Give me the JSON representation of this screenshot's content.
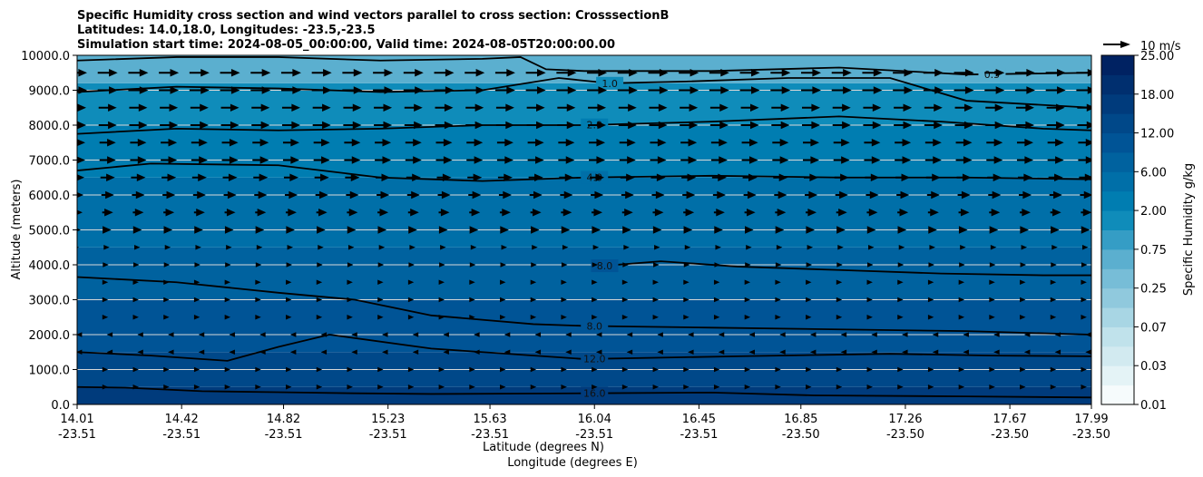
{
  "chart_data": {
    "type": "heatmap",
    "title_lines": [
      "Specific Humidity cross section and wind vectors parallel to cross section: CrosssectionB",
      "Latitudes: 14.0,18.0, Longitudes: -23.5,-23.5",
      "Simulation start time: 2024-08-05_00:00:00, Valid time: 2024-08-05T20:00:00.00"
    ],
    "ylabel": "Altitude (meters)",
    "xlabel_lines": [
      "Latitude (degrees N)",
      "Longitude (degrees E)"
    ],
    "ylim": [
      0,
      10000
    ],
    "y_ticks": [
      "0.0",
      "1000.0",
      "2000.0",
      "3000.0",
      "4000.0",
      "5000.0",
      "6000.0",
      "7000.0",
      "8000.0",
      "9000.0",
      "10000.0"
    ],
    "y_tick_values": [
      0,
      1000,
      2000,
      3000,
      4000,
      5000,
      6000,
      7000,
      8000,
      9000,
      10000
    ],
    "x_ticks": [
      {
        "lat": "14.01",
        "lon": "-23.51"
      },
      {
        "lat": "14.42",
        "lon": "-23.51"
      },
      {
        "lat": "14.82",
        "lon": "-23.51"
      },
      {
        "lat": "15.23",
        "lon": "-23.51"
      },
      {
        "lat": "15.63",
        "lon": "-23.51"
      },
      {
        "lat": "16.04",
        "lon": "-23.51"
      },
      {
        "lat": "16.45",
        "lon": "-23.51"
      },
      {
        "lat": "16.85",
        "lon": "-23.50"
      },
      {
        "lat": "17.26",
        "lon": "-23.50"
      },
      {
        "lat": "17.67",
        "lon": "-23.50"
      },
      {
        "lat": "17.99",
        "lon": "-23.50"
      }
    ],
    "grid": "horizontal",
    "colorbar": {
      "label": "Specific Humidity g/kg",
      "levels": [
        0.01,
        0.02,
        0.03,
        0.05,
        0.07,
        0.1,
        0.25,
        0.5,
        0.75,
        1.0,
        2.0,
        4.0,
        6.0,
        8.0,
        12.0,
        16.0,
        18.0,
        20.0,
        25.0
      ],
      "tick_labels": [
        "0.01",
        "0.03",
        "0.07",
        "0.25",
        "0.75",
        "2.00",
        "6.00",
        "12.00",
        "18.00",
        "25.00"
      ],
      "tick_levels": [
        0.01,
        0.03,
        0.07,
        0.25,
        0.75,
        2.0,
        6.0,
        12.0,
        18.0,
        25.0
      ]
    },
    "humidity_bands": [
      {
        "from": 0,
        "to": 500,
        "q": 16.0
      },
      {
        "from": 500,
        "to": 1500,
        "q": 12.0
      },
      {
        "from": 1500,
        "to": 3000,
        "q": 8.0
      },
      {
        "from": 3000,
        "to": 4500,
        "q": 6.0
      },
      {
        "from": 4500,
        "to": 6500,
        "q": 4.0
      },
      {
        "from": 6500,
        "to": 8000,
        "q": 2.0
      },
      {
        "from": 8000,
        "to": 9200,
        "q": 1.0
      },
      {
        "from": 9200,
        "to": 10000,
        "q": 0.5
      }
    ],
    "contours": [
      {
        "level": "16.0",
        "lat": [
          14.01,
          14.2,
          14.5,
          14.8,
          15.1,
          15.4,
          16.0,
          16.5,
          16.9,
          17.5,
          17.99
        ],
        "alt": [
          500,
          480,
          380,
          350,
          320,
          300,
          320,
          340,
          260,
          230,
          200
        ],
        "label_at": 16.04
      },
      {
        "level": "12.0",
        "lat": [
          14.01,
          14.3,
          14.6,
          14.8,
          15.0,
          15.4,
          16.0,
          16.6,
          17.2,
          17.6,
          17.99
        ],
        "alt": [
          1500,
          1400,
          1250,
          1650,
          2000,
          1600,
          1300,
          1380,
          1450,
          1400,
          1380
        ],
        "label_at": 16.04
      },
      {
        "level": "8.0",
        "lat": [
          14.01,
          14.4,
          14.8,
          15.1,
          15.4,
          15.8,
          16.0,
          16.5,
          17.0,
          17.5,
          17.99
        ],
        "alt": [
          3650,
          3500,
          3200,
          3000,
          2550,
          2300,
          2250,
          2200,
          2150,
          2100,
          2000
        ],
        "label_at": 16.04
      },
      {
        "level": "8.0",
        "lat": [
          16.04,
          16.3,
          16.6,
          17.0,
          17.4,
          17.8,
          17.99
        ],
        "alt": [
          3950,
          4100,
          3950,
          3850,
          3750,
          3700,
          3700
        ],
        "label_at": 16.08
      },
      {
        "level": "4.0",
        "lat": [
          14.01,
          14.3,
          14.8,
          15.2,
          15.6,
          16.0,
          16.5,
          17.0,
          17.5,
          17.99
        ],
        "alt": [
          6700,
          6900,
          6850,
          6500,
          6400,
          6500,
          6550,
          6500,
          6500,
          6450
        ],
        "label_at": 16.04
      },
      {
        "level": "2.0",
        "lat": [
          14.01,
          14.4,
          14.8,
          15.2,
          15.6,
          16.0,
          16.5,
          17.0,
          17.4,
          17.8,
          17.99
        ],
        "alt": [
          7750,
          7900,
          7850,
          7900,
          8000,
          8000,
          8100,
          8250,
          8100,
          7900,
          7850
        ],
        "label_at": 16.04
      },
      {
        "level": "1.0",
        "lat": [
          14.01,
          14.4,
          14.8,
          15.2,
          15.6,
          15.9,
          16.1,
          16.4,
          16.8,
          17.2,
          17.5,
          17.99
        ],
        "alt": [
          8950,
          9100,
          9050,
          8950,
          9000,
          9350,
          9200,
          9250,
          9350,
          9350,
          8700,
          8500
        ],
        "label_at": 16.1
      },
      {
        "level": "0.5",
        "lat": [
          14.01,
          14.4,
          14.8,
          15.2,
          15.6,
          15.75,
          15.85,
          16.0,
          16.5,
          17.0,
          17.5,
          17.99
        ],
        "alt": [
          9850,
          9950,
          9950,
          9850,
          9900,
          9950,
          9600,
          9550,
          9550,
          9650,
          9450,
          9500
        ],
        "label_at": 17.6
      }
    ],
    "vector_key": {
      "label": "10 m/s",
      "speed_ms": 10
    },
    "wind_vectors": {
      "lat": [
        14.01,
        14.13,
        14.25,
        14.37,
        14.49,
        14.61,
        14.73,
        14.85,
        14.97,
        15.09,
        15.21,
        15.33,
        15.45,
        15.57,
        15.69,
        15.81,
        15.93,
        16.05,
        16.17,
        16.29,
        16.41,
        16.53,
        16.65,
        16.77,
        16.89,
        17.01,
        17.13,
        17.25,
        17.37,
        17.49,
        17.61,
        17.73,
        17.85,
        17.97
      ],
      "alt": [
        9500,
        9000,
        8500,
        8000,
        7500,
        7000,
        6500,
        6000,
        5500,
        5000,
        4500,
        4000,
        3500,
        3000,
        2500,
        2000,
        1500,
        1000,
        500
      ],
      "u_ms": [
        11,
        11,
        10,
        10,
        9,
        9,
        8,
        7,
        6,
        4,
        2,
        1,
        0.5,
        0.5,
        0.5,
        -1,
        -1,
        0.5,
        0.5
      ]
    }
  }
}
